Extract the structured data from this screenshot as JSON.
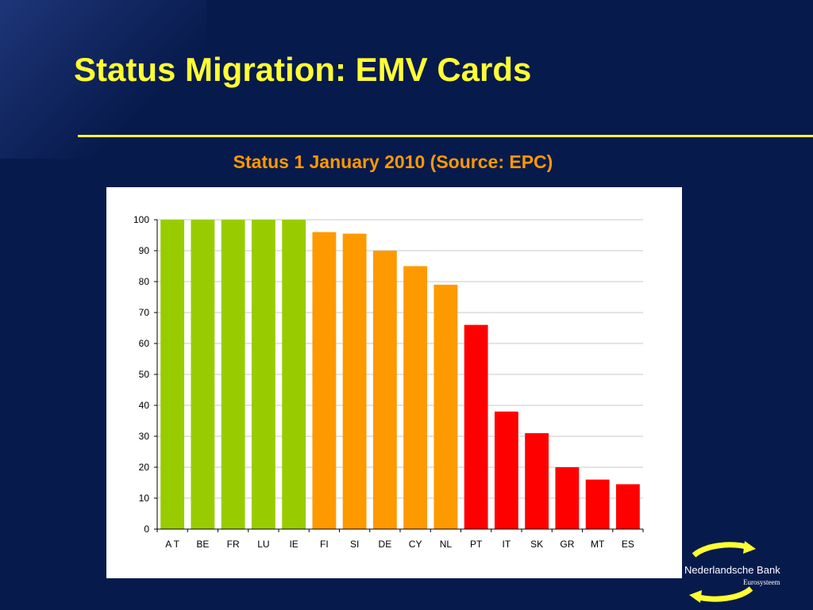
{
  "slide": {
    "title": "Status Migration: EMV Cards",
    "subtitle": "Status 1 January 2010 (Source: EPC)"
  },
  "logo": {
    "name": "Nederlandsche Bank",
    "sub": "Eurosysteem"
  },
  "colors": {
    "background": "#071a4c",
    "title": "#ffff33",
    "subtitle": "#ff9900",
    "green": "#99cc00",
    "orange": "#ff9900",
    "red": "#ff0000"
  },
  "chart_data": {
    "type": "bar",
    "title": "",
    "xlabel": "",
    "ylabel": "",
    "ylim": [
      0,
      100
    ],
    "yticks": [
      0,
      10,
      20,
      30,
      40,
      50,
      60,
      70,
      80,
      90,
      100
    ],
    "grid": true,
    "legend": "none",
    "categories": [
      "A T",
      "BE",
      "FR",
      "LU",
      "IE",
      "FI",
      "SI",
      "DE",
      "CY",
      "NL",
      "PT",
      "IT",
      "SK",
      "GR",
      "MT",
      "ES"
    ],
    "values": [
      100,
      100,
      100,
      100,
      100,
      96,
      95.5,
      90,
      85,
      79,
      66,
      38,
      31,
      20,
      16,
      14.5
    ],
    "bar_colors": [
      "#99cc00",
      "#99cc00",
      "#99cc00",
      "#99cc00",
      "#99cc00",
      "#ff9900",
      "#ff9900",
      "#ff9900",
      "#ff9900",
      "#ff9900",
      "#ff0000",
      "#ff0000",
      "#ff0000",
      "#ff0000",
      "#ff0000",
      "#ff0000"
    ]
  }
}
